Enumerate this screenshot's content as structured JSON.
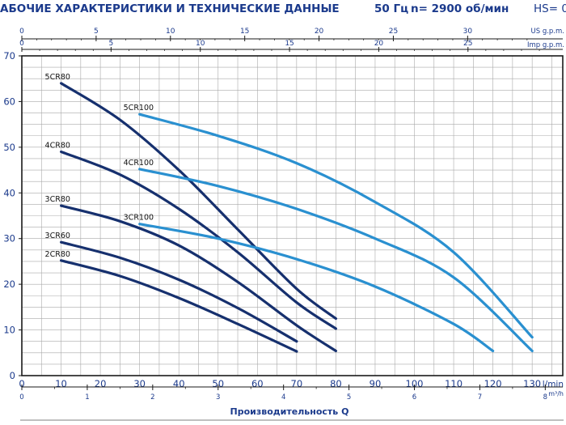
{
  "header": {
    "title": "АБОЧИЕ ХАРАКТЕРИСТИКИ И ТЕХНИЧЕСКИЕ ДАННЫЕ",
    "frequency": "50 Гц",
    "speed": "n= 2900 об/мин",
    "hs": "HS= 0"
  },
  "chart_data": {
    "type": "line",
    "title": "",
    "xlabel": "Производительность Q",
    "ylabel": "",
    "grid": true,
    "colors": {
      "cr80": "#16306e",
      "cr100": "#2a90d0",
      "grid": "#a9a9a9",
      "text": "#1b3a8c"
    },
    "axes": {
      "x_lmin": {
        "unit": "l/min",
        "range": [
          0,
          135
        ],
        "ticks": [
          0,
          10,
          20,
          30,
          40,
          50,
          60,
          70,
          80,
          90,
          100,
          110,
          120,
          130
        ]
      },
      "x_m3h": {
        "unit": "m³/h",
        "ticks": [
          0,
          1,
          2,
          3,
          4,
          5,
          6,
          7,
          8
        ]
      },
      "x_usgpm": {
        "unit": "US g.p.m.",
        "ticks": [
          0,
          5,
          10,
          15,
          20,
          25,
          30
        ]
      },
      "x_impgpm": {
        "unit": "Imp g.p.m.",
        "ticks": [
          0,
          5,
          10,
          15,
          20,
          25
        ]
      },
      "y": {
        "range": [
          0,
          70
        ],
        "ticks": [
          0,
          10,
          20,
          30,
          40,
          50,
          60,
          70
        ]
      }
    },
    "series": [
      {
        "name": "5CR80",
        "group": "cr80",
        "points": [
          [
            10,
            64
          ],
          [
            25,
            56
          ],
          [
            40,
            45
          ],
          [
            55,
            32
          ],
          [
            70,
            19
          ],
          [
            80,
            12.5
          ]
        ]
      },
      {
        "name": "4CR80",
        "group": "cr80",
        "points": [
          [
            10,
            49
          ],
          [
            25,
            44
          ],
          [
            40,
            36.5
          ],
          [
            55,
            27
          ],
          [
            70,
            16
          ],
          [
            80,
            10.3
          ]
        ]
      },
      {
        "name": "3CR80",
        "group": "cr80",
        "points": [
          [
            10,
            37.2
          ],
          [
            25,
            33.8
          ],
          [
            40,
            28.5
          ],
          [
            55,
            20.5
          ],
          [
            70,
            11
          ],
          [
            80,
            5.4
          ]
        ]
      },
      {
        "name": "3CR60",
        "group": "cr80",
        "points": [
          [
            10,
            29.2
          ],
          [
            25,
            25.8
          ],
          [
            40,
            21
          ],
          [
            55,
            14.8
          ],
          [
            70,
            7.5
          ]
        ]
      },
      {
        "name": "2CR80",
        "group": "cr80",
        "points": [
          [
            10,
            25.2
          ],
          [
            25,
            21.8
          ],
          [
            40,
            17
          ],
          [
            55,
            11.3
          ],
          [
            70,
            5.3
          ]
        ]
      },
      {
        "name": "5CR100",
        "group": "cr100",
        "points": [
          [
            30,
            57.2
          ],
          [
            50,
            52.5
          ],
          [
            70,
            46.5
          ],
          [
            90,
            38
          ],
          [
            110,
            27
          ],
          [
            130,
            8.4
          ]
        ]
      },
      {
        "name": "4CR100",
        "group": "cr100",
        "points": [
          [
            30,
            45.2
          ],
          [
            50,
            41.5
          ],
          [
            70,
            36.5
          ],
          [
            90,
            30
          ],
          [
            110,
            21.5
          ],
          [
            130,
            5.4
          ]
        ]
      },
      {
        "name": "3CR100",
        "group": "cr100",
        "points": [
          [
            30,
            33.2
          ],
          [
            50,
            30
          ],
          [
            70,
            25.5
          ],
          [
            90,
            19.5
          ],
          [
            110,
            11.3
          ],
          [
            120,
            5.4
          ]
        ]
      }
    ]
  }
}
